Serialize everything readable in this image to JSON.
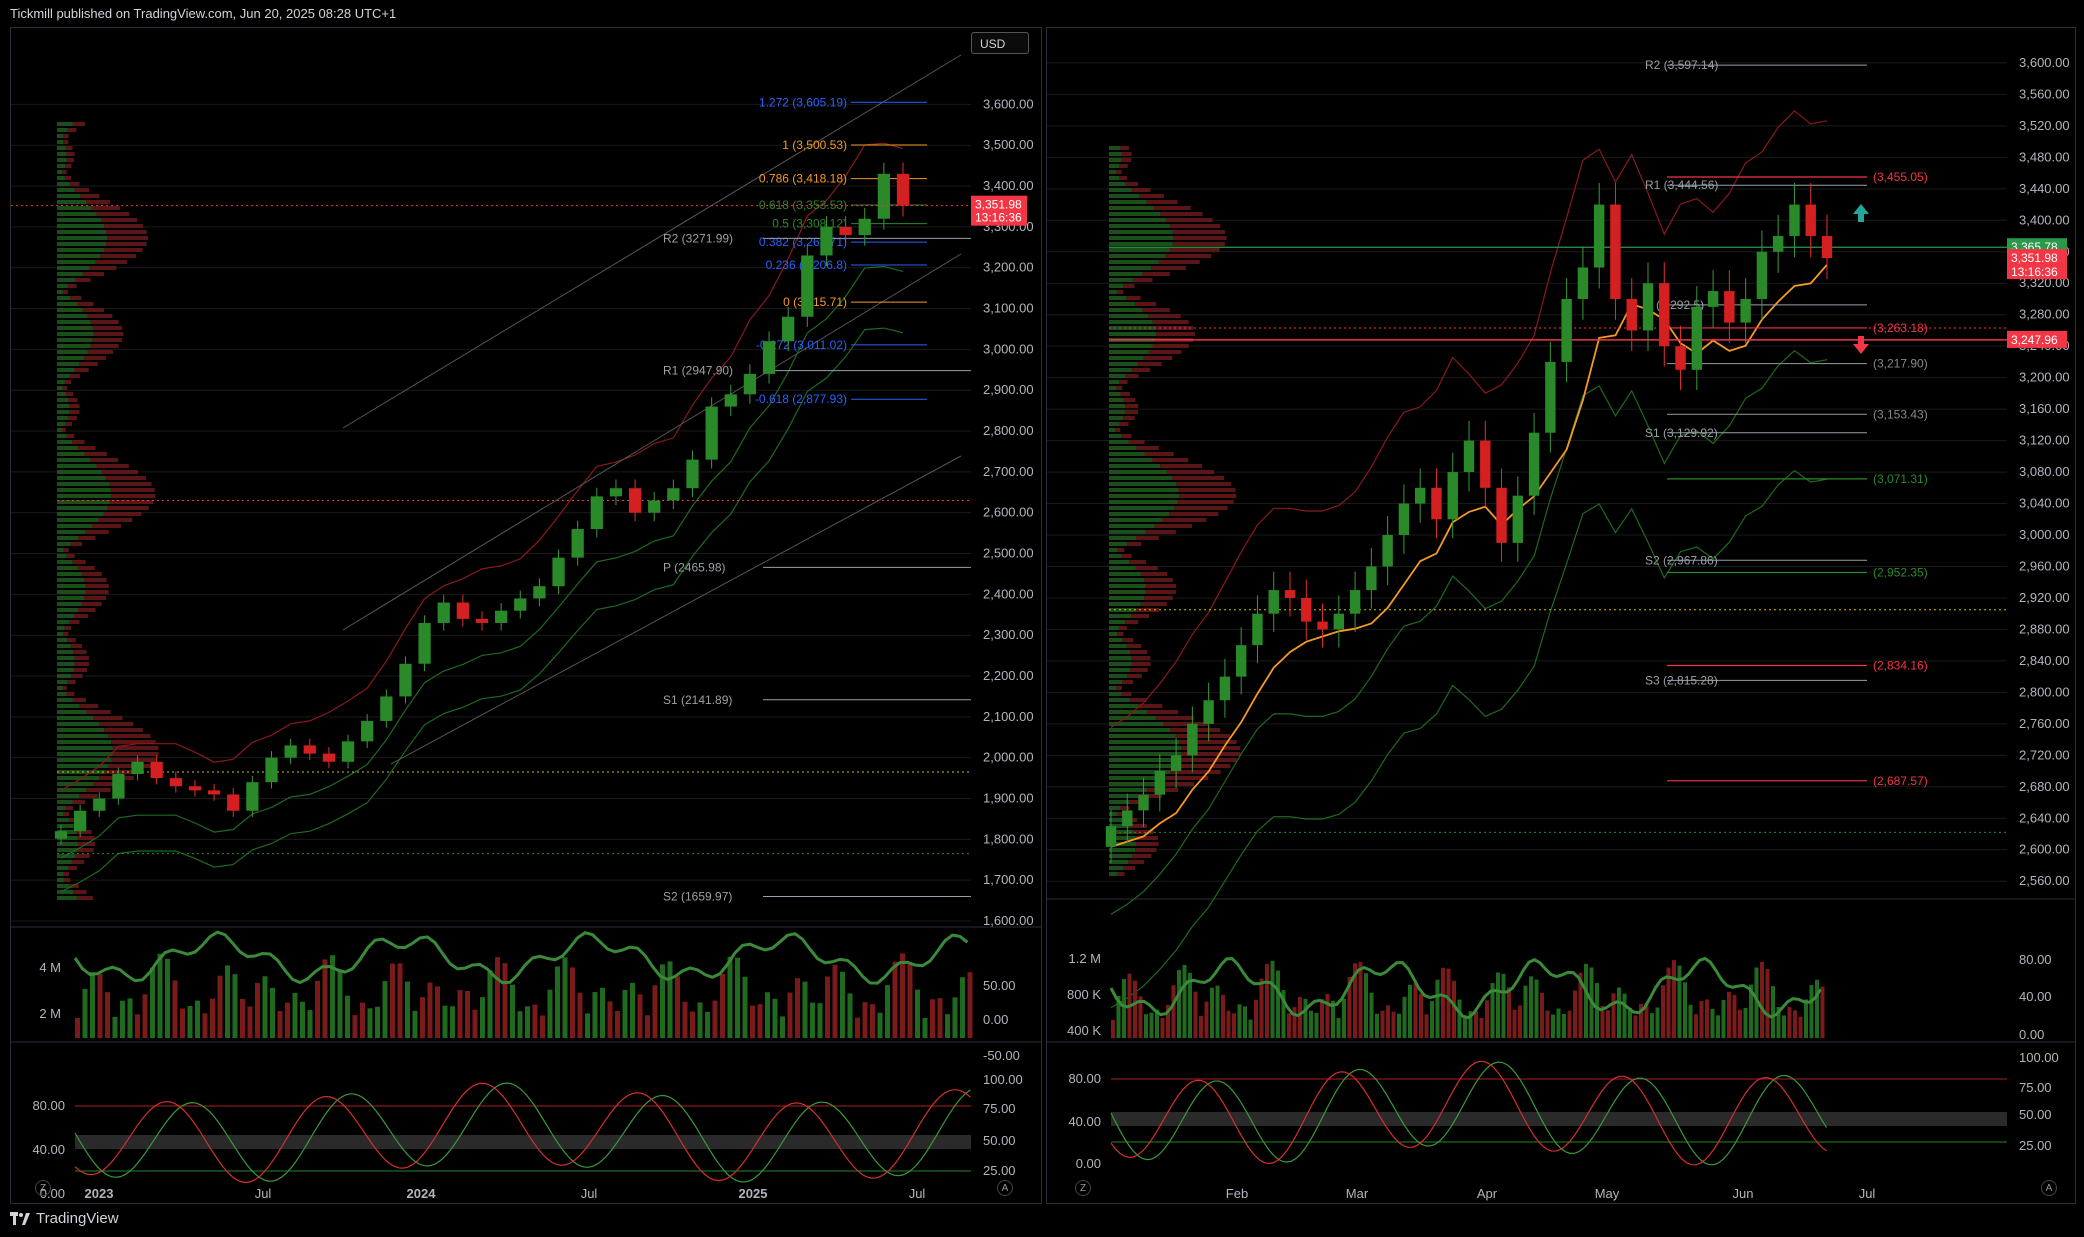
{
  "header": {
    "text": "Tickmill published on TradingView.com, Jun 20, 2025 08:28 UTC+1"
  },
  "footer": {
    "brand": "TradingView"
  },
  "colors": {
    "up": "#2a8a2a",
    "down": "#d42020",
    "bg": "#000000",
    "grid": "#1a1a1a",
    "fib_orange": "#f59a23",
    "fib_blue": "#2962ff",
    "price_red": "#f23645",
    "green_level": "#26a69a"
  },
  "left": {
    "currency": "USD",
    "last_price": "3,351.98",
    "countdown": "13:16:36",
    "price_ticks": [
      "3,600.00",
      "3,500.00",
      "3,400.00",
      "3,300.00",
      "3,200.00",
      "3,100.00",
      "3,000.00",
      "2,900.00",
      "2,800.00",
      "2,700.00",
      "2,600.00",
      "2,500.00",
      "2,400.00",
      "2,300.00",
      "2,200.00",
      "2,100.00",
      "2,000.00",
      "1,900.00",
      "1,800.00",
      "1,700.00",
      "1,600.00"
    ],
    "time_ticks": [
      "2023",
      "Jul",
      "2024",
      "Jul",
      "2025",
      "Jul"
    ],
    "fib_labels": [
      "1.272 (3,605.19)",
      "1 (3,500.53)",
      "0.786 (3,418.18)",
      "0.618 (3,353.53)",
      "0.5 (3,308.12)",
      "0.382 (3,262.71)",
      "0.236 (3,206.8)",
      "0 (3,115.71)",
      "-0.272 (3,011.02)",
      "-0.618 (2,877.93)"
    ],
    "pivot_labels": [
      "R2 (3271.99)",
      "R1 (2947.90)",
      "P (2465.98)",
      "S1 (2141.89)",
      "S2 (1659.97)"
    ],
    "volume_ticks": [
      "4 M",
      "2 M"
    ],
    "volume_osc_ticks": [
      "50.00",
      "0.00",
      "-50.00"
    ],
    "stoch_ticks_left": [
      "80.00",
      "40.00",
      "0.00"
    ],
    "stoch_ticks_right": [
      "100.00",
      "75.00",
      "50.00",
      "25.00"
    ],
    "corner_buttons": [
      "Z",
      "A"
    ]
  },
  "right": {
    "price_ticks": [
      "3,600.00",
      "3,560.00",
      "3,520.00",
      "3,480.00",
      "3,440.00",
      "3,400.00",
      "3,360.00",
      "3,320.00",
      "3,280.00",
      "3,240.00",
      "3,200.00",
      "3,160.00",
      "3,120.00",
      "3,080.00",
      "3,040.00",
      "3,000.00",
      "2,960.00",
      "2,920.00",
      "2,880.00",
      "2,840.00",
      "2,800.00",
      "2,760.00",
      "2,720.00",
      "2,680.00",
      "2,640.00",
      "2,600.00",
      "2,560.00"
    ],
    "time_ticks": [
      "Feb",
      "Mar",
      "Apr",
      "May",
      "Jun",
      "Jul"
    ],
    "pivot_labels": [
      "R2 (3,597.14)",
      "R1 (3,444.56)",
      "P (3,292.5)",
      "S1 (3,129.92)",
      "S2 (2,967.86)",
      "S3 (2,815.28)"
    ],
    "level_labels": [
      "(3,455.05)",
      "(3,263.18)",
      "(3,217.90)",
      "(3,153.43)",
      "(3,071.31)",
      "(2,952.35)",
      "(2,834.16)",
      "(2,687.57)"
    ],
    "price_tags": [
      "3,365.78",
      "3,351.98",
      "13:16:36",
      "3,247.96"
    ],
    "volume_ticks": [
      "1.2 M",
      "800 K",
      "400 K"
    ],
    "volume_osc_ticks": [
      "80.00",
      "40.00",
      "0.00"
    ],
    "stoch_ticks_left": [
      "80.00",
      "40.00",
      "0.00"
    ],
    "stoch_ticks_right": [
      "100.00",
      "75.00",
      "50.00",
      "25.00"
    ],
    "corner_buttons": [
      "Z",
      "A"
    ]
  },
  "chart_data": [
    {
      "type": "candlestick",
      "title": "",
      "timeframe_span": [
        "2023",
        "Jul 2025"
      ],
      "ylim": [
        1600,
        3650
      ],
      "approx_closes": [
        1820,
        1870,
        1900,
        1960,
        1990,
        1950,
        1930,
        1920,
        1910,
        1870,
        1940,
        2000,
        2030,
        2010,
        1990,
        2040,
        2090,
        2150,
        2230,
        2330,
        2380,
        2340,
        2330,
        2360,
        2390,
        2420,
        2490,
        2560,
        2640,
        2660,
        2600,
        2630,
        2660,
        2730,
        2860,
        2890,
        2940,
        3020,
        3080,
        3230,
        3300,
        3280,
        3320,
        3430,
        3351.98
      ],
      "last": 3351.98
    },
    {
      "type": "candlestick",
      "title": "",
      "timeframe_span": [
        "Jan 2025",
        "Jul 2025"
      ],
      "ylim": [
        2545,
        3605
      ],
      "approx_closes": [
        2630,
        2650,
        2670,
        2700,
        2720,
        2760,
        2790,
        2820,
        2860,
        2900,
        2930,
        2920,
        2890,
        2880,
        2900,
        2930,
        2960,
        3000,
        3040,
        3060,
        3020,
        3080,
        3120,
        3060,
        2990,
        3050,
        3130,
        3220,
        3300,
        3340,
        3420,
        3300,
        3260,
        3320,
        3240,
        3210,
        3290,
        3310,
        3270,
        3300,
        3360,
        3380,
        3420,
        3380,
        3351.98
      ],
      "last": 3351.98
    }
  ]
}
